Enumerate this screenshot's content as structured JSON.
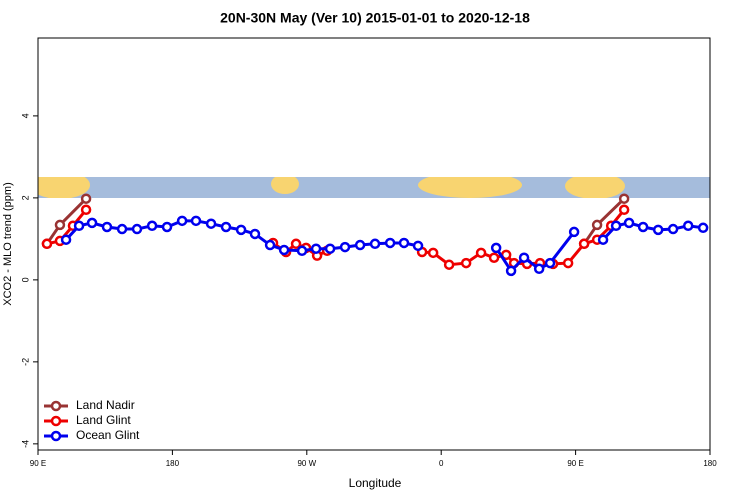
{
  "chart_data": {
    "type": "line",
    "title": "20N-30N May (Ver 10)   2015-01-01 to 2020-12-18",
    "x_label": "Longitude",
    "y_label": "XCO2 - MLO trend (ppm)",
    "xlim": [
      90,
      540
    ],
    "xticks": [
      {
        "value": 90,
        "label": "90 E"
      },
      {
        "value": 180,
        "label": "180"
      },
      {
        "value": 270,
        "label": "90 W"
      },
      {
        "value": 360,
        "label": "0"
      },
      {
        "value": 450,
        "label": "90 E"
      },
      {
        "value": 540,
        "label": "180"
      }
    ],
    "ylim": [
      -4.15,
      5.9
    ],
    "yticks": [
      -4,
      -2,
      0,
      2,
      4
    ],
    "legend": "bottom-left",
    "series": [
      {
        "name": "Land Nadir",
        "color": "#993333",
        "x": [
          96.0,
          104.7,
          122.2,
          null,
          455.7,
          464.4,
          482.5
        ],
        "values": [
          0.88,
          1.34,
          1.98,
          null,
          0.88,
          1.34,
          1.98
        ]
      },
      {
        "name": "Land Glint",
        "color": "#ee0000",
        "x": [
          96.0,
          104.7,
          113.4,
          122.2,
          null,
          247.4,
          256.1,
          262.8,
          269.5,
          276.9,
          283.6,
          null,
          347.2,
          354.6,
          365.3,
          376.7,
          386.7,
          395.4,
          403.5,
          408.8,
          417.5,
          426.2,
          434.9,
          445.0,
          455.7,
          464.4,
          473.8,
          482.5
        ],
        "values": [
          0.88,
          0.95,
          1.32,
          1.71,
          null,
          0.9,
          0.68,
          0.88,
          0.78,
          0.59,
          0.71,
          null,
          0.68,
          0.66,
          0.37,
          0.41,
          0.66,
          0.54,
          0.61,
          0.41,
          0.39,
          0.41,
          0.39,
          0.41,
          0.88,
          0.98,
          1.32,
          1.71
        ]
      },
      {
        "name": "Ocean Glint",
        "color": "#0000ee",
        "x": [
          108.8,
          117.5,
          126.2,
          136.2,
          146.3,
          156.3,
          166.4,
          176.4,
          186.5,
          195.8,
          205.9,
          215.9,
          226.0,
          235.3,
          245.4,
          254.8,
          266.8,
          276.2,
          285.6,
          295.6,
          305.7,
          315.7,
          325.8,
          335.1,
          344.5,
          null,
          396.8,
          406.8,
          415.5,
          425.6,
          432.9,
          449.0,
          null,
          468.4,
          477.1,
          485.8,
          495.2,
          505.3,
          515.3,
          525.4,
          535.4
        ],
        "values": [
          0.98,
          1.32,
          1.39,
          1.29,
          1.24,
          1.24,
          1.32,
          1.29,
          1.44,
          1.44,
          1.37,
          1.29,
          1.22,
          1.12,
          0.85,
          0.73,
          0.71,
          0.76,
          0.76,
          0.8,
          0.85,
          0.88,
          0.9,
          0.9,
          0.83,
          null,
          0.78,
          0.22,
          0.54,
          0.27,
          0.41,
          1.17,
          null,
          0.98,
          1.32,
          1.39,
          1.29,
          1.22,
          1.24,
          1.32,
          1.27
        ]
      }
    ]
  }
}
